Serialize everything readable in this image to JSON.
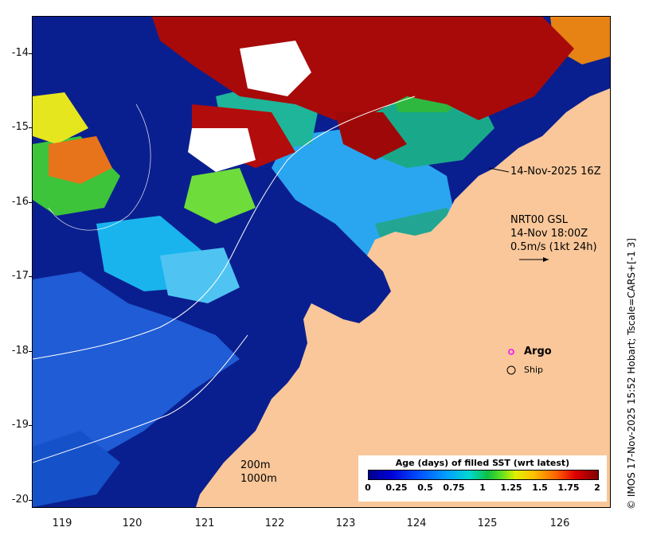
{
  "map": {
    "y_ticks": [
      "-14",
      "-15",
      "-16",
      "-17",
      "-18",
      "-19",
      "-20"
    ],
    "x_ticks": [
      "119",
      "120",
      "121",
      "122",
      "123",
      "124",
      "125",
      "126"
    ],
    "lat_range": [
      -20.1,
      -13.5
    ],
    "lon_range": [
      118.6,
      126.7
    ],
    "timestamp_label": "14-Nov-2025 16Z",
    "currents_title": "NRT00 GSL",
    "currents_time": "14-Nov 18:00Z",
    "currents_scale": "0.5m/s (1kt 24h)",
    "argo_label": "Argo",
    "ship_label": "Ship",
    "contour_200": "200m",
    "contour_1000": "1000m",
    "side_credit": "© IMOS 17-Nov-2025 15:52 Hobart; Tscale=CARS+[-1 3]",
    "colors": {
      "land": "#f9c79a",
      "argo_marker": "#ff00ff"
    }
  },
  "colorbar": {
    "title": "Age (days) of filled SST (wrt latest)",
    "labels": [
      "0",
      "0.25",
      "0.5",
      "0.75",
      "1",
      "1.25",
      "1.5",
      "1.75",
      "2"
    ]
  }
}
